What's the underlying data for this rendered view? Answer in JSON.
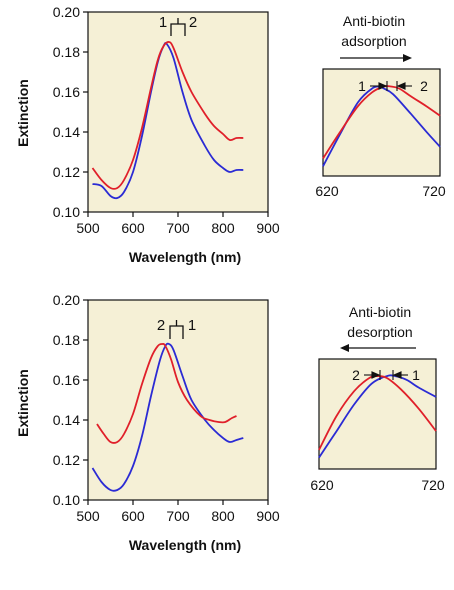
{
  "colors": {
    "background": "#f5f0d6",
    "series1": "#2b2bd4",
    "series2": "#e0202a",
    "axis": "#111111"
  },
  "chart_data": [
    {
      "type": "line",
      "xlabel": "Wavelength (nm)",
      "ylabel": "Extinction",
      "xlim": [
        500,
        900
      ],
      "ylim": [
        0.1,
        0.2
      ],
      "xticks": [
        "500",
        "600",
        "700",
        "800",
        "900"
      ],
      "yticks": [
        "0.10",
        "0.12",
        "0.14",
        "0.16",
        "0.18",
        "0.20"
      ],
      "peak_labels": [
        "1",
        "2"
      ],
      "series": [
        {
          "name": "1",
          "color": "#2b2bd4",
          "x": [
            510,
            530,
            550,
            565,
            580,
            600,
            620,
            640,
            655,
            668,
            675,
            690,
            710,
            730,
            760,
            780,
            800,
            815,
            830,
            845
          ],
          "y": [
            0.114,
            0.113,
            0.108,
            0.107,
            0.11,
            0.12,
            0.138,
            0.16,
            0.175,
            0.183,
            0.184,
            0.177,
            0.16,
            0.146,
            0.133,
            0.126,
            0.122,
            0.12,
            0.121,
            0.121
          ]
        },
        {
          "name": "2",
          "color": "#e0202a",
          "x": [
            510,
            530,
            550,
            565,
            580,
            600,
            620,
            640,
            655,
            668,
            680,
            690,
            710,
            730,
            760,
            780,
            800,
            815,
            830,
            845
          ],
          "y": [
            0.122,
            0.116,
            0.112,
            0.112,
            0.116,
            0.126,
            0.142,
            0.162,
            0.176,
            0.183,
            0.185,
            0.182,
            0.17,
            0.16,
            0.149,
            0.143,
            0.139,
            0.136,
            0.137,
            0.137
          ]
        }
      ]
    },
    {
      "type": "line",
      "title": "Anti-biotin adsorption",
      "xticks": [
        "620",
        "720"
      ],
      "xlim": [
        620,
        720
      ],
      "annotations": [
        "1",
        "2"
      ],
      "series": [
        {
          "name": "1",
          "color": "#2b2bd4",
          "x": [
            620,
            635,
            650,
            662,
            668,
            672,
            680,
            695,
            708,
            720
          ],
          "y": [
            0.12,
            0.137,
            0.153,
            0.16,
            0.161,
            0.16,
            0.157,
            0.147,
            0.138,
            0.13
          ]
        },
        {
          "name": "2",
          "color": "#e0202a",
          "x": [
            620,
            635,
            650,
            662,
            672,
            678,
            685,
            695,
            708,
            720
          ],
          "y": [
            0.124,
            0.138,
            0.151,
            0.158,
            0.161,
            0.161,
            0.16,
            0.156,
            0.151,
            0.146
          ]
        }
      ]
    },
    {
      "type": "line",
      "xlabel": "Wavelength (nm)",
      "ylabel": "Extinction",
      "xlim": [
        500,
        900
      ],
      "ylim": [
        0.1,
        0.2
      ],
      "xticks": [
        "500",
        "600",
        "700",
        "800",
        "900"
      ],
      "yticks": [
        "0.10",
        "0.12",
        "0.14",
        "0.16",
        "0.18",
        "0.20"
      ],
      "peak_labels": [
        "2",
        "1"
      ],
      "series": [
        {
          "name": "1",
          "color": "#2b2bd4",
          "x": [
            510,
            530,
            550,
            565,
            580,
            600,
            620,
            640,
            660,
            672,
            680,
            690,
            710,
            730,
            760,
            780,
            800,
            815,
            830,
            845
          ],
          "y": [
            0.116,
            0.109,
            0.105,
            0.105,
            0.108,
            0.117,
            0.132,
            0.152,
            0.17,
            0.177,
            0.178,
            0.175,
            0.162,
            0.15,
            0.14,
            0.135,
            0.131,
            0.129,
            0.13,
            0.131
          ]
        },
        {
          "name": "2",
          "color": "#e0202a",
          "x": [
            520,
            535,
            550,
            565,
            580,
            600,
            620,
            640,
            655,
            665,
            672,
            685,
            700,
            720,
            750,
            770,
            790,
            805,
            820,
            830
          ],
          "y": [
            0.138,
            0.133,
            0.129,
            0.129,
            0.133,
            0.143,
            0.158,
            0.171,
            0.177,
            0.178,
            0.177,
            0.17,
            0.159,
            0.15,
            0.142,
            0.14,
            0.139,
            0.139,
            0.141,
            0.142
          ]
        }
      ]
    },
    {
      "type": "line",
      "title": "Anti-biotin desorption",
      "xticks": [
        "620",
        "720"
      ],
      "xlim": [
        620,
        720
      ],
      "annotations": [
        "2",
        "1"
      ],
      "series": [
        {
          "name": "1",
          "color": "#2b2bd4",
          "x": [
            620,
            635,
            650,
            665,
            678,
            685,
            695,
            705,
            720
          ],
          "y": [
            0.118,
            0.132,
            0.146,
            0.157,
            0.161,
            0.161,
            0.159,
            0.155,
            0.15
          ]
        },
        {
          "name": "2",
          "color": "#e0202a",
          "x": [
            620,
            635,
            650,
            663,
            670,
            678,
            690,
            705,
            720
          ],
          "y": [
            0.122,
            0.14,
            0.153,
            0.16,
            0.161,
            0.16,
            0.154,
            0.144,
            0.132
          ]
        }
      ]
    }
  ]
}
